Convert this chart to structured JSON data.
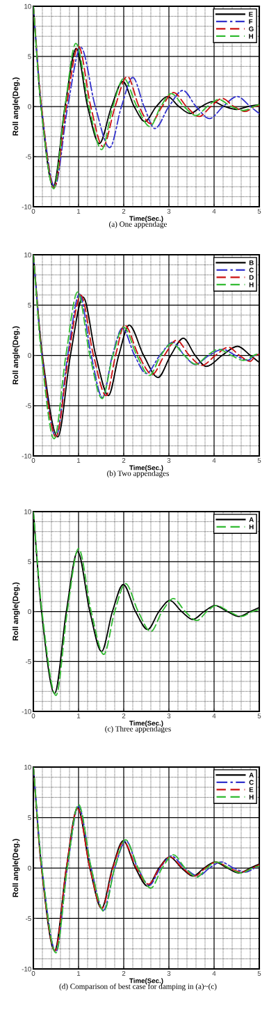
{
  "chart_data": [
    {
      "type": "line",
      "xlabel": "Time(Sec.)",
      "ylabel": "Roll angle(Deg.)",
      "annotations": [
        "(a) One appendage"
      ],
      "xlim": [
        0,
        5
      ],
      "ylim": [
        -10,
        10
      ],
      "xticks": [
        0,
        1,
        2,
        3,
        4,
        5
      ],
      "yticks": [
        -10,
        -5,
        0,
        5,
        10
      ],
      "grid": true,
      "legend": "top right",
      "series": [
        {
          "name": "E",
          "color": "#000000",
          "line_style": "solid",
          "x": [
            0,
            0.17,
            0.44,
            0.7,
            0.95,
            1.2,
            1.46,
            1.73,
            1.98,
            2.23,
            2.47,
            2.72,
            2.97,
            3.22,
            3.47,
            3.72,
            3.97,
            4.23,
            4.5,
            4.75,
            5
          ],
          "values": [
            10,
            0,
            -8.0,
            0,
            5.8,
            0,
            -3.7,
            0,
            2.5,
            0,
            -1.5,
            0,
            1.0,
            0,
            -0.7,
            0,
            0.5,
            0,
            -0.3,
            0,
            0.2
          ]
        },
        {
          "name": "F",
          "color": "#3333cc",
          "line_style": "dashdot",
          "x": [
            0,
            0.18,
            0.47,
            0.76,
            1.05,
            1.37,
            1.69,
            1.95,
            2.2,
            2.45,
            2.69,
            3.0,
            3.31,
            3.6,
            3.9,
            4.2,
            4.51,
            4.8,
            5
          ],
          "values": [
            10,
            0,
            -8.0,
            0,
            5.9,
            0,
            -4.1,
            0,
            2.9,
            0,
            -2.2,
            0,
            1.6,
            0,
            -1.2,
            0,
            1.0,
            0,
            -0.7
          ]
        },
        {
          "name": "G",
          "color": "#cc1111",
          "line_style": "dashed",
          "x": [
            0,
            0.18,
            0.46,
            0.73,
            1.0,
            1.27,
            1.54,
            1.81,
            2.08,
            2.34,
            2.59,
            2.85,
            3.1,
            3.39,
            3.67,
            3.93,
            4.18,
            4.44,
            4.69,
            4.9,
            5
          ],
          "values": [
            10,
            0,
            -8.1,
            0,
            6.0,
            0,
            -4.0,
            0,
            3.0,
            0,
            -1.7,
            0,
            1.4,
            0,
            -1.0,
            0,
            0.8,
            0,
            -0.5,
            0,
            0.1
          ]
        },
        {
          "name": "H",
          "color": "#33bb33",
          "line_style": "dashed",
          "x": [
            0,
            0.17,
            0.45,
            0.7,
            0.94,
            1.23,
            1.51,
            1.76,
            2.0,
            2.29,
            2.58,
            2.82,
            3.05,
            3.33,
            3.6,
            3.85,
            4.1,
            4.38,
            4.65,
            4.88,
            5
          ],
          "values": [
            10,
            0,
            -8.2,
            0,
            6.3,
            0,
            -4.3,
            0,
            2.8,
            0,
            -2.0,
            0,
            1.3,
            0,
            -0.9,
            0,
            0.7,
            0,
            -0.4,
            0,
            0.2
          ]
        }
      ]
    },
    {
      "type": "line",
      "xlabel": "Time(Sec.)",
      "ylabel": "Roll angle(Deg.)",
      "annotations": [
        "(b) Two appendages"
      ],
      "xlim": [
        0,
        5
      ],
      "ylim": [
        -10,
        10
      ],
      "xticks": [
        0,
        1,
        2,
        3,
        4,
        5
      ],
      "yticks": [
        -10,
        -5,
        0,
        5,
        10
      ],
      "grid": true,
      "legend": "top right",
      "series": [
        {
          "name": "B",
          "color": "#000000",
          "line_style": "solid",
          "x": [
            0,
            0.2,
            0.54,
            0.82,
            1.1,
            1.38,
            1.66,
            1.89,
            2.12,
            2.44,
            2.76,
            3.04,
            3.32,
            3.58,
            3.83,
            4.18,
            4.52,
            4.8,
            5
          ],
          "values": [
            10,
            0,
            -8.1,
            0,
            5.8,
            0,
            -4.0,
            0,
            3.0,
            0,
            -2.2,
            0,
            1.7,
            0,
            -1.1,
            0,
            0.9,
            0,
            -0.7
          ]
        },
        {
          "name": "C",
          "color": "#3333cc",
          "line_style": "dashdot",
          "x": [
            0,
            0.19,
            0.5,
            0.76,
            1.02,
            1.28,
            1.53,
            1.75,
            1.97,
            2.24,
            2.5,
            2.8,
            3.09,
            3.34,
            3.58,
            3.89,
            4.19,
            4.47,
            4.75,
            4.9,
            5
          ],
          "values": [
            10,
            0,
            -8.1,
            0,
            6.1,
            0,
            -4.2,
            0,
            2.7,
            0,
            -1.8,
            0,
            1.3,
            0,
            -0.9,
            0,
            0.6,
            0,
            -0.5,
            0,
            0.1
          ]
        },
        {
          "name": "D",
          "color": "#cc1111",
          "line_style": "dashed",
          "x": [
            0,
            0.19,
            0.5,
            0.78,
            1.05,
            1.33,
            1.61,
            1.82,
            2.02,
            2.33,
            2.63,
            2.9,
            3.17,
            3.45,
            3.73,
            4.03,
            4.32,
            4.56,
            4.8,
            4.93,
            5
          ],
          "values": [
            10,
            0,
            -8.1,
            0,
            6.0,
            0,
            -4.0,
            0,
            3.0,
            0,
            -1.9,
            0,
            1.5,
            0,
            -1.0,
            0,
            0.8,
            0,
            -0.6,
            0,
            0.1
          ]
        },
        {
          "name": "H",
          "color": "#33bb33",
          "line_style": "dashed",
          "x": [
            0,
            0.18,
            0.46,
            0.72,
            0.98,
            1.25,
            1.52,
            1.76,
            2.0,
            2.29,
            2.57,
            2.82,
            3.07,
            3.34,
            3.6,
            3.85,
            4.1,
            4.38,
            4.65,
            4.88,
            5
          ],
          "values": [
            10,
            0,
            -8.3,
            0,
            6.3,
            0,
            -4.3,
            0,
            2.8,
            0,
            -2.0,
            0,
            1.2,
            0,
            -0.9,
            0,
            0.6,
            0,
            -0.5,
            0,
            0.2
          ]
        }
      ]
    },
    {
      "type": "line",
      "xlabel": "Time(Sec.)",
      "ylabel": "Roll angle(Deg.)",
      "annotations": [
        "(c) Three appendages"
      ],
      "xlim": [
        0,
        5
      ],
      "ylim": [
        -10,
        10
      ],
      "xticks": [
        0,
        1,
        2,
        3,
        4,
        5
      ],
      "yticks": [
        -10,
        -5,
        0,
        5,
        10
      ],
      "grid": true,
      "legend": "top right",
      "series": [
        {
          "name": "A",
          "color": "#000000",
          "line_style": "solid",
          "x": [
            0,
            0.18,
            0.47,
            0.73,
            0.98,
            1.25,
            1.51,
            1.75,
            1.99,
            2.26,
            2.53,
            2.78,
            3.02,
            3.28,
            3.53,
            3.78,
            4.02,
            4.29,
            4.55,
            4.8,
            5
          ],
          "values": [
            10,
            0,
            -8.2,
            0,
            6.0,
            0,
            -4.0,
            0,
            2.7,
            0,
            -1.8,
            0,
            1.1,
            0,
            -0.8,
            0,
            0.6,
            0,
            -0.5,
            0,
            0.4
          ]
        },
        {
          "name": "H",
          "color": "#33bb33",
          "line_style": "dashed",
          "x": [
            0,
            0.19,
            0.5,
            0.75,
            1.0,
            1.28,
            1.56,
            1.8,
            2.04,
            2.32,
            2.6,
            2.85,
            3.1,
            3.36,
            3.62,
            3.84,
            4.05,
            4.33,
            4.6,
            4.85,
            5
          ],
          "values": [
            10,
            0,
            -8.4,
            0,
            6.3,
            0,
            -4.3,
            0,
            2.8,
            0,
            -2.0,
            0,
            1.3,
            0,
            -0.9,
            0,
            0.6,
            0,
            -0.5,
            0,
            0.2
          ]
        }
      ]
    },
    {
      "type": "line",
      "xlabel": "Time(Sec.)",
      "ylabel": "Roll angle(Deg.)",
      "annotations": [
        "(d) Comparison of best case for damping in (a)~(c)"
      ],
      "xlim": [
        0,
        5
      ],
      "ylim": [
        -10,
        10
      ],
      "xticks": [
        0,
        1,
        2,
        3,
        4,
        5
      ],
      "yticks": [
        -10,
        -5,
        0,
        5,
        10
      ],
      "grid": true,
      "legend": "top right",
      "series": [
        {
          "name": "A",
          "color": "#000000",
          "line_style": "solid",
          "x": [
            0,
            0.18,
            0.47,
            0.73,
            0.98,
            1.25,
            1.51,
            1.75,
            1.99,
            2.26,
            2.53,
            2.78,
            3.02,
            3.28,
            3.53,
            3.78,
            4.02,
            4.29,
            4.55,
            4.8,
            5
          ],
          "values": [
            10,
            0,
            -8.2,
            0,
            6.0,
            0,
            -4.0,
            0,
            2.7,
            0,
            -1.8,
            0,
            1.1,
            0,
            -0.8,
            0,
            0.6,
            0,
            -0.5,
            0,
            0.4
          ]
        },
        {
          "name": "C",
          "color": "#3333cc",
          "line_style": "dashdot",
          "x": [
            0,
            0.19,
            0.5,
            0.75,
            1.0,
            1.28,
            1.55,
            1.8,
            2.05,
            2.31,
            2.57,
            2.81,
            3.05,
            3.35,
            3.65,
            3.9,
            4.15,
            4.43,
            4.7,
            4.9,
            5
          ],
          "values": [
            10,
            0,
            -8.3,
            0,
            6.1,
            0,
            -4.2,
            0,
            2.7,
            0,
            -1.7,
            0,
            1.2,
            0,
            -0.8,
            0,
            0.6,
            0,
            -0.4,
            0,
            0.2
          ]
        },
        {
          "name": "E",
          "color": "#cc1111",
          "line_style": "dashed",
          "x": [
            0,
            0.18,
            0.48,
            0.73,
            0.98,
            1.25,
            1.52,
            1.76,
            2.0,
            2.28,
            2.55,
            2.79,
            3.03,
            3.3,
            3.57,
            3.81,
            4.05,
            4.33,
            4.6,
            4.85,
            5
          ],
          "values": [
            10,
            0,
            -8.2,
            0,
            5.9,
            0,
            -4.0,
            0,
            2.6,
            0,
            -1.6,
            0,
            1.1,
            0,
            -0.8,
            0,
            0.6,
            0,
            -0.4,
            0,
            0.3
          ]
        },
        {
          "name": "H",
          "color": "#33bb33",
          "line_style": "dashed",
          "x": [
            0,
            0.19,
            0.5,
            0.75,
            1.0,
            1.28,
            1.56,
            1.8,
            2.04,
            2.32,
            2.6,
            2.85,
            3.1,
            3.36,
            3.62,
            3.84,
            4.05,
            4.33,
            4.6,
            4.85,
            5
          ],
          "values": [
            10,
            0,
            -8.4,
            0,
            6.3,
            0,
            -4.3,
            0,
            2.8,
            0,
            -2.0,
            0,
            1.3,
            0,
            -0.9,
            0,
            0.6,
            0,
            -0.5,
            0,
            0.2
          ]
        }
      ]
    }
  ]
}
